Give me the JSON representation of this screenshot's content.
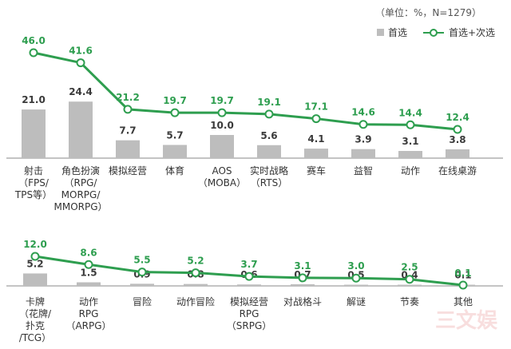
{
  "note": "（单位：%，N=1279）",
  "legend": {
    "bar_label": "首选",
    "line_label": "首选+次选",
    "bar_color": "#bdbdbd",
    "line_color": "#2e9e4f"
  },
  "watermark": "三文娱",
  "chart_data": [
    {
      "type": "bar",
      "categories": [
        [
          "射击",
          "（FPS/",
          "TPS等）"
        ],
        [
          "角色扮演",
          "（RPG/",
          "MORPG/",
          "MMORPG）"
        ],
        [
          "模拟经营"
        ],
        [
          "体育"
        ],
        [
          "AOS",
          "（MOBA）"
        ],
        [
          "实时战略",
          "（RTS）"
        ],
        [
          "赛车"
        ],
        [
          "益智"
        ],
        [
          "动作"
        ],
        [
          "在线桌游"
        ]
      ],
      "series": [
        {
          "name": "首选",
          "type": "bar",
          "values": [
            21.0,
            24.4,
            7.7,
            5.7,
            10.0,
            5.6,
            4.1,
            3.9,
            3.1,
            3.8
          ]
        },
        {
          "name": "首选+次选",
          "type": "line",
          "values": [
            46.0,
            41.6,
            21.2,
            19.7,
            19.7,
            19.1,
            17.1,
            14.6,
            14.4,
            12.4
          ]
        }
      ]
    },
    {
      "type": "bar",
      "categories": [
        [
          "卡牌",
          "（花牌/",
          "扑克",
          "/TCG）"
        ],
        [
          "动作",
          "RPG",
          "（ARPG）"
        ],
        [
          "冒险"
        ],
        [
          "动作冒险"
        ],
        [
          "模拟经营",
          "RPG",
          "（SRPG）"
        ],
        [
          "对战格斗"
        ],
        [
          "解谜"
        ],
        [
          "节奏"
        ],
        [
          "其他"
        ]
      ],
      "series": [
        {
          "name": "首选",
          "type": "bar",
          "values": [
            5.2,
            1.5,
            0.9,
            0.8,
            0.6,
            0.7,
            0.5,
            0.4,
            0.1
          ]
        },
        {
          "name": "首选+次选",
          "type": "line",
          "values": [
            12.0,
            8.6,
            5.5,
            5.2,
            3.7,
            3.1,
            3.0,
            2.5,
            0.1
          ]
        }
      ]
    }
  ]
}
